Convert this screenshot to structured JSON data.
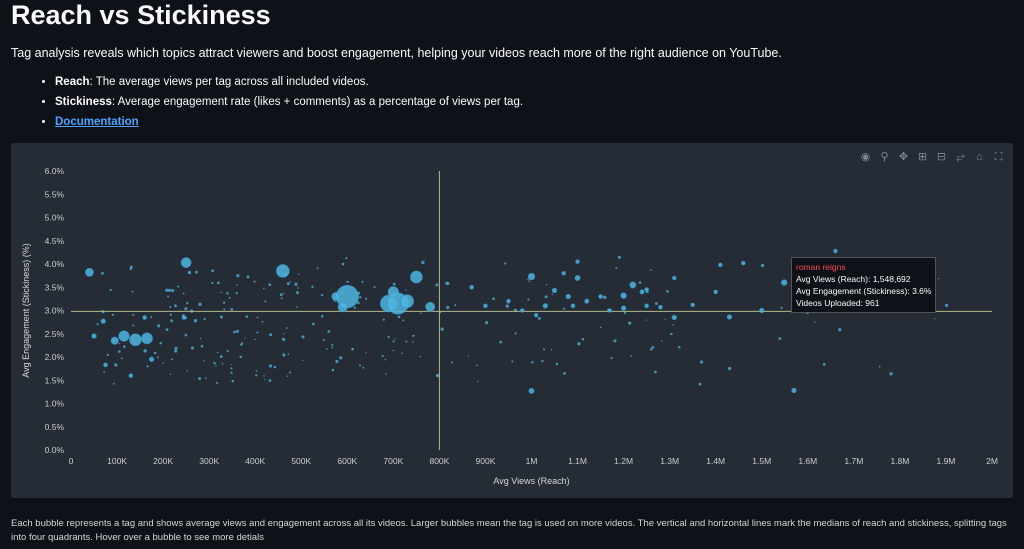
{
  "page": {
    "title": "Reach vs Stickiness",
    "subtitle": "Tag analysis reveals which topics attract viewers and boost engagement, helping your videos reach more of the right audience on YouTube.",
    "bullets": [
      {
        "term": "Reach",
        "text": ": The average views per tag across all included videos."
      },
      {
        "term": "Stickiness",
        "text": ": Average engagement rate (likes + comments) as a percentage of views per tag."
      }
    ],
    "doc_link": "Documentation",
    "caption": "Each bubble represents a tag and shows average views and engagement across all its videos. Larger bubbles mean the tag is used on more videos. The vertical and horizontal lines mark the medians of reach and stickiness, splitting tags into four quadrants. Hover over a bubble to see more detials"
  },
  "modebar": [
    "camera-icon",
    "zoom-icon",
    "pan-icon",
    "zoom-in-icon",
    "zoom-out-icon",
    "autoscale-icon",
    "reset-axes-icon",
    "fullscreen-icon"
  ],
  "tooltip": {
    "name": "roman reigns",
    "line1": "Avg Views (Reach): 1,548,692",
    "line2": "Avg Engagement (Stickiness): 3.6%",
    "line3": "Videos Uploaded: 961"
  },
  "colors": {
    "bubble": "#4fb5df",
    "median": "#b5b889",
    "background": "#262c36"
  },
  "chart_data": {
    "type": "scatter",
    "xlabel": "Avg Views (Reach)",
    "ylabel": "Avg Engagement (Stickiness) (%)",
    "xlim": [
      0,
      2000000
    ],
    "ylim": [
      0,
      6
    ],
    "x_ticks": [
      0,
      100000,
      200000,
      300000,
      400000,
      500000,
      600000,
      700000,
      800000,
      900000,
      1000000,
      1100000,
      1200000,
      1300000,
      1400000,
      1500000,
      1600000,
      1700000,
      1800000,
      1900000,
      2000000
    ],
    "x_tick_labels": [
      "0",
      "100K",
      "200K",
      "300K",
      "400K",
      "500K",
      "600K",
      "700K",
      "800K",
      "900K",
      "1M",
      "1.1M",
      "1.2M",
      "1.3M",
      "1.4M",
      "1.5M",
      "1.6M",
      "1.7M",
      "1.8M",
      "1.9M",
      "2M"
    ],
    "y_ticks": [
      0,
      0.5,
      1,
      1.5,
      2,
      2.5,
      3,
      3.5,
      4,
      4.5,
      5,
      5.5,
      6
    ],
    "y_tick_labels": [
      "0.0%",
      "0.5%",
      "1.0%",
      "1.5%",
      "2.0%",
      "2.5%",
      "3.0%",
      "3.5%",
      "4.0%",
      "4.5%",
      "5.0%",
      "5.5%",
      "6.0%"
    ],
    "median_x": 800000,
    "median_y": 2.98,
    "points": [
      {
        "x": 40000,
        "y": 3.82,
        "size": 120
      },
      {
        "x": 250000,
        "y": 4.03,
        "size": 180
      },
      {
        "x": 460000,
        "y": 3.85,
        "size": 300
      },
      {
        "x": 600000,
        "y": 3.3,
        "size": 900
      },
      {
        "x": 690000,
        "y": 3.15,
        "size": 500
      },
      {
        "x": 710000,
        "y": 3.15,
        "size": 800
      },
      {
        "x": 700000,
        "y": 3.4,
        "size": 200
      },
      {
        "x": 730000,
        "y": 3.2,
        "size": 300
      },
      {
        "x": 750000,
        "y": 3.72,
        "size": 260
      },
      {
        "x": 780000,
        "y": 3.08,
        "size": 150
      },
      {
        "x": 590000,
        "y": 3.07,
        "size": 160
      },
      {
        "x": 575000,
        "y": 3.3,
        "size": 120
      },
      {
        "x": 115000,
        "y": 2.45,
        "size": 200
      },
      {
        "x": 140000,
        "y": 2.37,
        "size": 260
      },
      {
        "x": 165000,
        "y": 2.4,
        "size": 220
      },
      {
        "x": 95000,
        "y": 2.35,
        "size": 100
      },
      {
        "x": 70000,
        "y": 2.77,
        "size": 40
      },
      {
        "x": 50000,
        "y": 2.45,
        "size": 40
      },
      {
        "x": 75000,
        "y": 1.83,
        "size": 30
      },
      {
        "x": 130000,
        "y": 1.6,
        "size": 30
      },
      {
        "x": 175000,
        "y": 1.95,
        "size": 40
      },
      {
        "x": 160000,
        "y": 2.85,
        "size": 30
      },
      {
        "x": 245000,
        "y": 2.85,
        "size": 30
      },
      {
        "x": 1000000,
        "y": 1.27,
        "size": 50
      },
      {
        "x": 1570000,
        "y": 1.28,
        "size": 40
      },
      {
        "x": 1548692,
        "y": 3.6,
        "size": 60
      },
      {
        "x": 1000000,
        "y": 3.73,
        "size": 80
      },
      {
        "x": 1220000,
        "y": 3.55,
        "size": 70
      },
      {
        "x": 1200000,
        "y": 3.32,
        "size": 60
      },
      {
        "x": 1100000,
        "y": 3.7,
        "size": 50
      },
      {
        "x": 1080000,
        "y": 3.3,
        "size": 40
      },
      {
        "x": 1030000,
        "y": 3.1,
        "size": 40
      },
      {
        "x": 1310000,
        "y": 2.85,
        "size": 40
      },
      {
        "x": 1430000,
        "y": 2.86,
        "size": 40
      },
      {
        "x": 1500000,
        "y": 3.0,
        "size": 40
      },
      {
        "x": 1660000,
        "y": 4.28,
        "size": 25
      },
      {
        "x": 1460000,
        "y": 4.02,
        "size": 25
      },
      {
        "x": 1410000,
        "y": 3.98,
        "size": 25
      },
      {
        "x": 1050000,
        "y": 3.43,
        "size": 40
      },
      {
        "x": 1200000,
        "y": 3.05,
        "size": 40
      },
      {
        "x": 1090000,
        "y": 3.1,
        "size": 30
      },
      {
        "x": 1120000,
        "y": 3.2,
        "size": 35
      },
      {
        "x": 1280000,
        "y": 3.07,
        "size": 30
      },
      {
        "x": 1150000,
        "y": 3.3,
        "size": 30
      },
      {
        "x": 1250000,
        "y": 3.45,
        "size": 30
      },
      {
        "x": 1350000,
        "y": 3.12,
        "size": 25
      },
      {
        "x": 900000,
        "y": 3.1,
        "size": 30
      },
      {
        "x": 1100000,
        "y": 4.05,
        "size": 25
      },
      {
        "x": 870000,
        "y": 3.5,
        "size": 30
      },
      {
        "x": 1240000,
        "y": 3.4,
        "size": 35
      },
      {
        "x": 1400000,
        "y": 3.4,
        "size": 25
      },
      {
        "x": 1170000,
        "y": 3.0,
        "size": 25
      },
      {
        "x": 1010000,
        "y": 2.9,
        "size": 25
      },
      {
        "x": 1250000,
        "y": 3.1,
        "size": 30
      },
      {
        "x": 1310000,
        "y": 3.7,
        "size": 25
      },
      {
        "x": 1070000,
        "y": 3.8,
        "size": 25
      },
      {
        "x": 950000,
        "y": 3.2,
        "size": 30
      },
      {
        "x": 980000,
        "y": 3.0,
        "size": 25
      }
    ]
  }
}
